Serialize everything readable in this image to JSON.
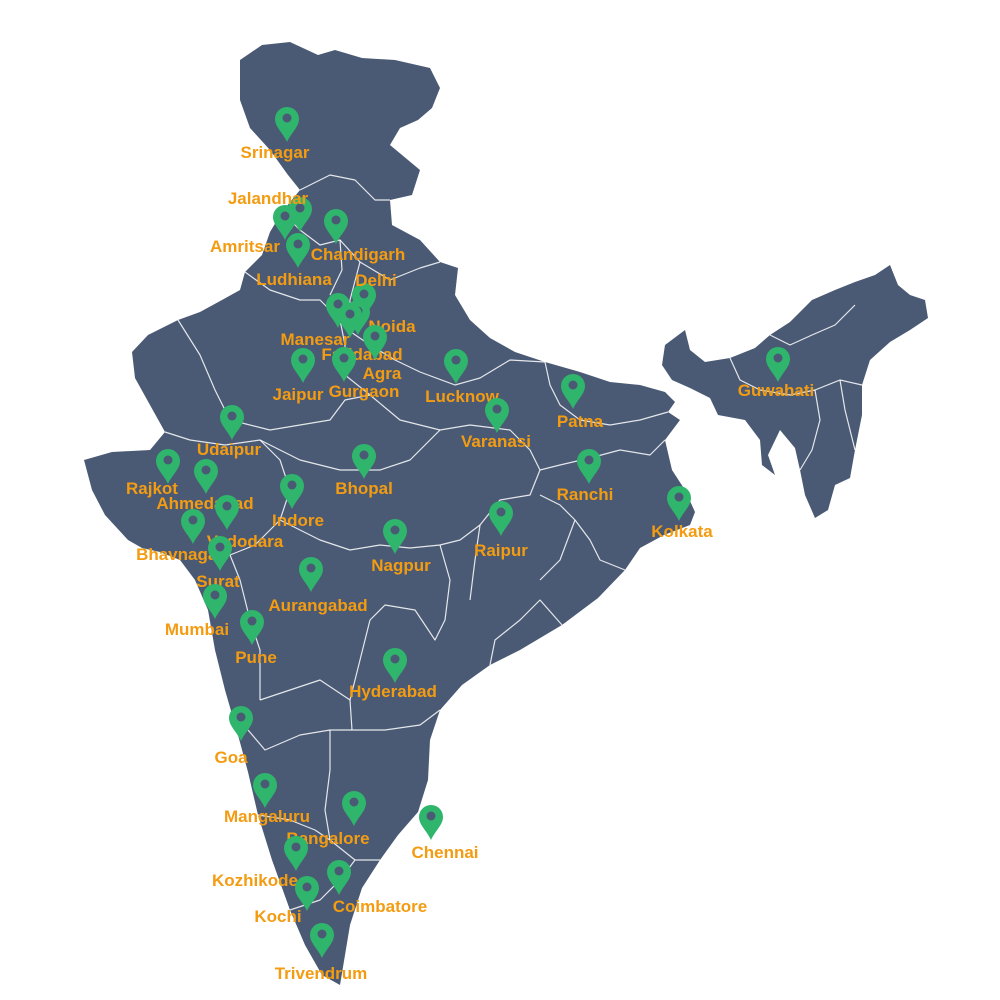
{
  "colors": {
    "land": "#4a5a74",
    "borders": "#ffffff",
    "marker": "#2fb56c",
    "marker_hole": "#4a5a74",
    "label": "#f39c12",
    "background": "#ffffff"
  },
  "marker_icon": "map-pin-icon",
  "cities": [
    {
      "name": "Srinagar"
    },
    {
      "name": "Jalandhar"
    },
    {
      "name": "Amritsar"
    },
    {
      "name": "Chandigarh"
    },
    {
      "name": "Ludhiana"
    },
    {
      "name": "Delhi"
    },
    {
      "name": "Noida"
    },
    {
      "name": "Manesar"
    },
    {
      "name": "Faridabad"
    },
    {
      "name": "Agra"
    },
    {
      "name": "Gurgaon"
    },
    {
      "name": "Jaipur"
    },
    {
      "name": "Lucknow"
    },
    {
      "name": "Patna"
    },
    {
      "name": "Varanasi"
    },
    {
      "name": "Guwahati"
    },
    {
      "name": "Udaipur"
    },
    {
      "name": "Rajkot"
    },
    {
      "name": "Ahmedabad"
    },
    {
      "name": "Bhopal"
    },
    {
      "name": "Indore"
    },
    {
      "name": "Vadodara"
    },
    {
      "name": "Bhavnagar"
    },
    {
      "name": "Surat"
    },
    {
      "name": "Ranchi"
    },
    {
      "name": "Kolkata"
    },
    {
      "name": "Raipur"
    },
    {
      "name": "Nagpur"
    },
    {
      "name": "Aurangabad"
    },
    {
      "name": "Mumbai"
    },
    {
      "name": "Pune"
    },
    {
      "name": "Hyderabad"
    },
    {
      "name": "Goa"
    },
    {
      "name": "Mangaluru"
    },
    {
      "name": "Bangalore"
    },
    {
      "name": "Chennai"
    },
    {
      "name": "Kozhikode"
    },
    {
      "name": "Kochi"
    },
    {
      "name": "Coimbatore"
    },
    {
      "name": "Trivendrum"
    }
  ]
}
